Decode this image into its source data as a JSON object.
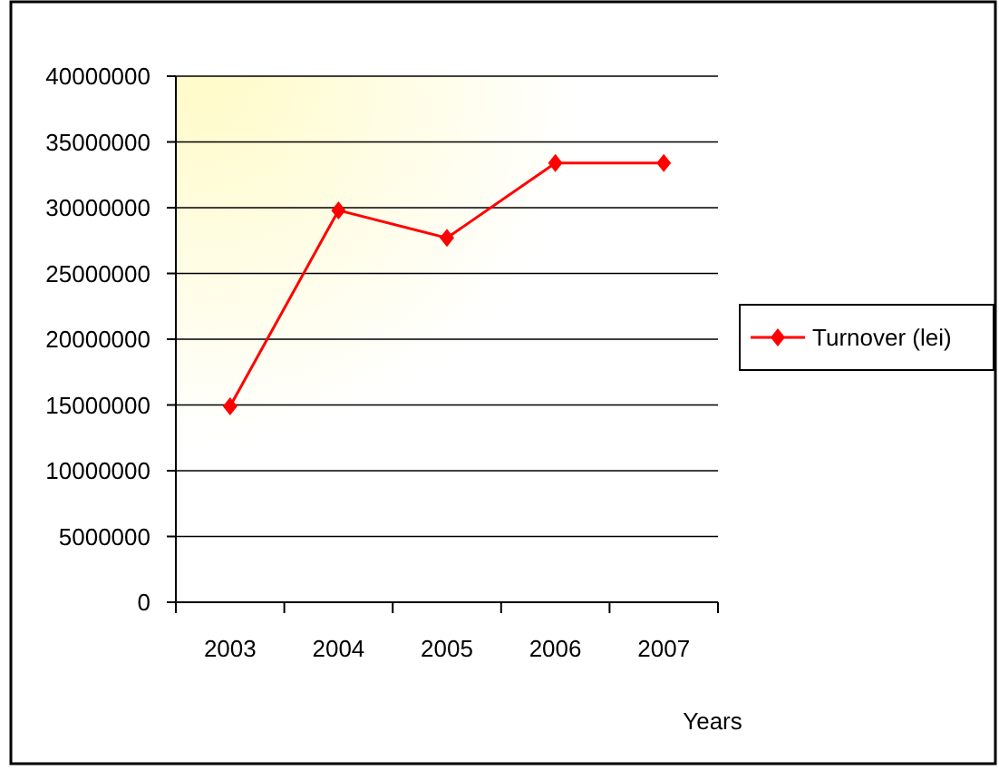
{
  "chart_data": {
    "type": "line",
    "xlabel": "Years",
    "categories": [
      "2003",
      "2004",
      "2005",
      "2006",
      "2007"
    ],
    "series": [
      {
        "name": "Turnover (lei)",
        "color": "#ff0000",
        "values": [
          14900000,
          29800000,
          27700000,
          33400000,
          33400000
        ]
      }
    ],
    "ylim": [
      0,
      40000000
    ],
    "yticks": [
      0,
      5000000,
      10000000,
      15000000,
      20000000,
      25000000,
      30000000,
      35000000,
      40000000
    ],
    "grid": "y",
    "legend": "right",
    "marker": "diamond",
    "line_style": "solid"
  }
}
